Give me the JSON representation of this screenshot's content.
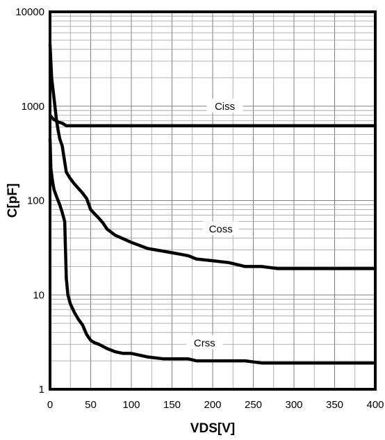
{
  "chart_data": {
    "type": "line",
    "xlabel": "VDS[V]",
    "ylabel": "C[pF]",
    "xlim": [
      0,
      400
    ],
    "ylim": [
      1,
      10000
    ],
    "yscale": "log",
    "grid": true,
    "x_ticks": [
      "0",
      "50",
      "100",
      "150",
      "200",
      "250",
      "300",
      "350",
      "400"
    ],
    "y_ticks": [
      "1",
      "10",
      "100",
      "1000",
      "10000"
    ],
    "series": [
      {
        "name": "Ciss",
        "x": [
          0,
          2,
          5,
          10,
          15,
          20,
          25,
          50,
          100,
          200,
          300,
          400
        ],
        "y": [
          800,
          760,
          720,
          680,
          660,
          620,
          620,
          620,
          620,
          620,
          620,
          620
        ]
      },
      {
        "name": "Coss",
        "x": [
          0,
          2,
          5,
          8,
          10,
          12,
          15,
          20,
          25,
          30,
          40,
          45,
          50,
          60,
          65,
          70,
          80,
          100,
          120,
          140,
          160,
          170,
          180,
          200,
          220,
          240,
          260,
          280,
          300,
          400
        ],
        "y": [
          4500,
          2000,
          1200,
          700,
          550,
          450,
          380,
          200,
          170,
          150,
          120,
          105,
          80,
          65,
          58,
          50,
          43,
          36,
          31,
          29,
          27,
          26,
          24,
          23,
          22,
          20,
          20,
          19,
          19,
          19
        ]
      },
      {
        "name": "Crss",
        "x": [
          0,
          1,
          3,
          5,
          8,
          12,
          15,
          18,
          20,
          22,
          25,
          30,
          35,
          40,
          45,
          50,
          55,
          60,
          70,
          80,
          90,
          100,
          120,
          140,
          160,
          170,
          180,
          200,
          240,
          260,
          300,
          400
        ],
        "y": [
          450,
          220,
          160,
          130,
          110,
          90,
          75,
          60,
          15,
          10,
          8,
          6.5,
          5.5,
          4.8,
          3.8,
          3.3,
          3.1,
          3.0,
          2.7,
          2.5,
          2.4,
          2.4,
          2.2,
          2.1,
          2.1,
          2.1,
          2.0,
          2.0,
          2.0,
          1.9,
          1.9,
          1.9
        ]
      }
    ]
  }
}
